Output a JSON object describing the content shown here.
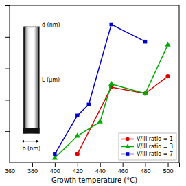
{
  "chart_data": {
    "type": "line",
    "xlabel": "Growth temperature (°C)",
    "xlim": [
      360,
      510
    ],
    "xticks": [
      360,
      380,
      400,
      420,
      440,
      460,
      480,
      500
    ],
    "ylim": [
      0,
      1.0
    ],
    "yticks": [
      0,
      0.2,
      0.4,
      0.6,
      0.8,
      1.0
    ],
    "tick_labels": "x",
    "legend": "lower right",
    "annotations": [
      "d (nm)",
      "L (μm)",
      "b (nm)"
    ],
    "series": [
      {
        "name": "V/III ratio = 1",
        "color": "#dd0000",
        "marker": "circle",
        "x": [
          420,
          450,
          480,
          500
        ],
        "values": [
          0.055,
          0.48,
          0.44,
          0.55
        ]
      },
      {
        "name": "V/III ratio = 3",
        "color": "#00aa00",
        "marker": "triangle",
        "x": [
          400,
          420,
          440,
          450,
          480,
          500
        ],
        "values": [
          0.03,
          0.17,
          0.26,
          0.5,
          0.44,
          0.75
        ]
      },
      {
        "name": "V/III ratio = 7",
        "color": "#0000cc",
        "marker": "square",
        "x": [
          400,
          420,
          430,
          450,
          480
        ],
        "values": [
          0.055,
          0.3,
          0.37,
          0.88,
          0.77
        ]
      }
    ]
  }
}
